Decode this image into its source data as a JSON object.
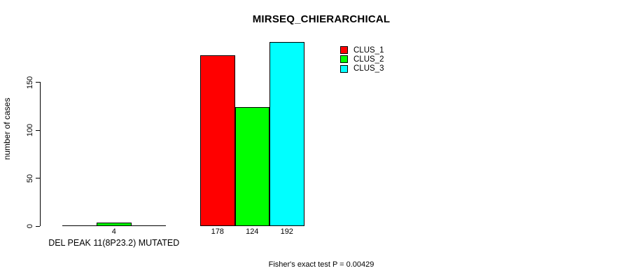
{
  "chart_data": {
    "type": "bar",
    "title": "MIRSEQ_CHIERARCHICAL",
    "ylabel": "number of cases",
    "xlabel": "",
    "footnote": "Fisher's exact test P = 0.00429",
    "ylim": [
      0,
      196
    ],
    "yticks": [
      0,
      50,
      100,
      150
    ],
    "grid": false,
    "legend_position": "top-right",
    "background_color": "#ffffff",
    "axis_color": "#000000",
    "series": [
      {
        "name": "CLUS_1",
        "color": "#ff0000"
      },
      {
        "name": "CLUS_2",
        "color": "#00ff00"
      },
      {
        "name": "CLUS_3",
        "color": "#00ffff"
      }
    ],
    "groups": [
      {
        "label": "DEL PEAK 11(8P23.2) MUTATED",
        "values": [
          0,
          4,
          0
        ],
        "value_labels": [
          "",
          "4",
          ""
        ]
      },
      {
        "label": "",
        "values": [
          178,
          124,
          192
        ],
        "value_labels": [
          "178",
          "124",
          "192"
        ]
      }
    ]
  }
}
